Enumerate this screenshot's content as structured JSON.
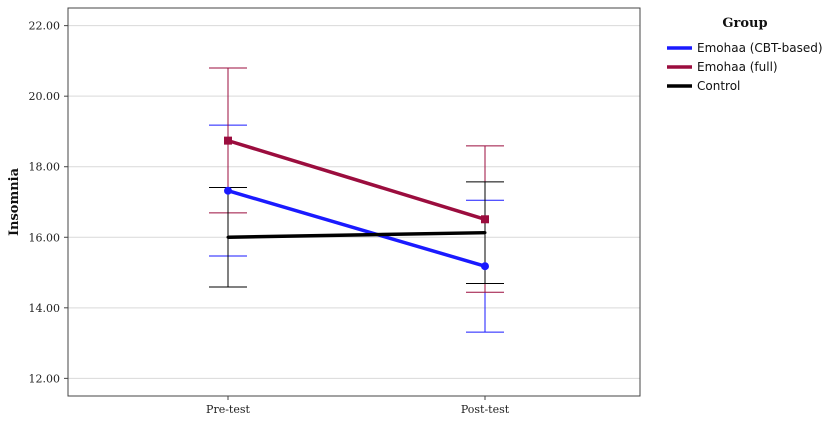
{
  "chart_data": {
    "type": "line",
    "title": "",
    "xlabel": "",
    "ylabel": "Insomnia",
    "categories": [
      "Pre-test",
      "Post-test"
    ],
    "ylim": [
      11.5,
      22.5
    ],
    "yticks": [
      "12.00",
      "14.00",
      "16.00",
      "18.00",
      "20.00",
      "22.00"
    ],
    "grid": true,
    "legend": {
      "title": "Group",
      "placement": "right"
    },
    "series": [
      {
        "name": "Emohaa (CBT-based)",
        "color": "#1a1aff",
        "marker": "circle",
        "values": [
          17.32,
          15.18
        ],
        "error_low": [
          15.47,
          13.31
        ],
        "error_high": [
          19.18,
          17.05
        ]
      },
      {
        "name": "Emohaa (full)",
        "color": "#9b0d3e",
        "marker": "square",
        "values": [
          18.74,
          16.51
        ],
        "error_low": [
          16.69,
          14.44
        ],
        "error_high": [
          20.8,
          18.59
        ]
      },
      {
        "name": "Control",
        "color": "#000000",
        "marker": "none",
        "values": [
          16.0,
          16.13
        ],
        "error_low": [
          14.59,
          14.69
        ],
        "error_high": [
          17.41,
          17.57
        ]
      }
    ]
  }
}
